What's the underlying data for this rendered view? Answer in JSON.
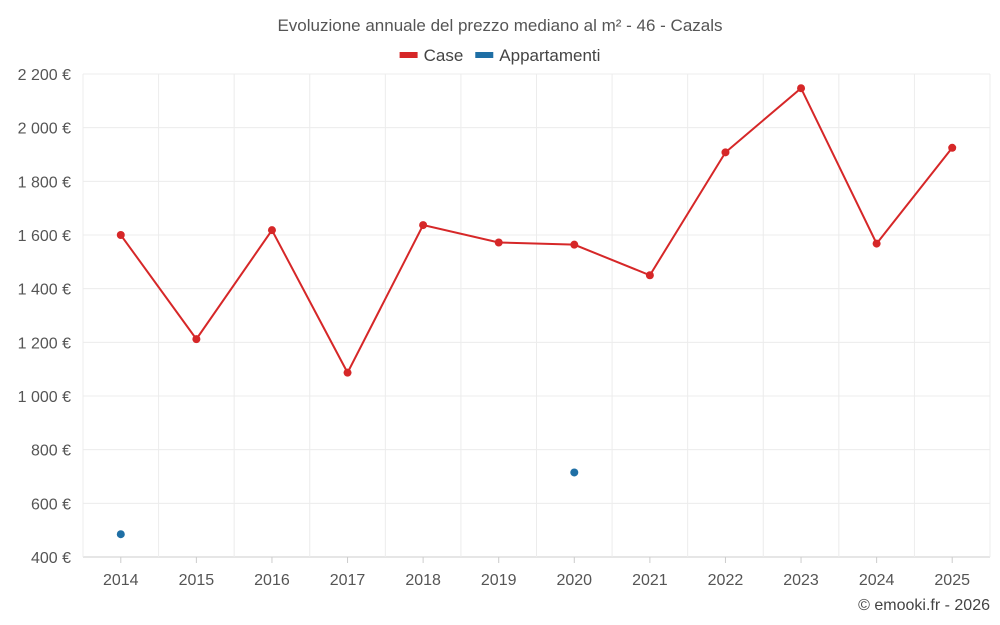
{
  "chart_data": {
    "type": "line",
    "title": "Evoluzione annuale del prezzo mediano al m² - 46 - Cazals",
    "legend_position": "top-center",
    "grid": true,
    "categories": [
      "2014",
      "2015",
      "2016",
      "2017",
      "2018",
      "2019",
      "2020",
      "2021",
      "2022",
      "2023",
      "2024",
      "2025"
    ],
    "ylim": [
      400,
      2200
    ],
    "yticks": [
      400,
      600,
      800,
      1000,
      1200,
      1400,
      1600,
      1800,
      2000,
      2200
    ],
    "ytick_labels": [
      "400 €",
      "600 €",
      "800 €",
      "1 000 €",
      "1 200 €",
      "1 400 €",
      "1 600 €",
      "1 800 €",
      "2 000 €",
      "2 200 €"
    ],
    "series": [
      {
        "name": "Case",
        "color": "#d62728",
        "values": [
          1600,
          1212,
          1618,
          1087,
          1637,
          1572,
          1564,
          1450,
          1908,
          2147,
          1568,
          1925
        ]
      },
      {
        "name": "Appartamenti",
        "color": "#1f6fa5",
        "values": [
          485,
          null,
          null,
          null,
          null,
          null,
          715,
          null,
          null,
          null,
          null,
          null
        ]
      }
    ]
  },
  "credit": "© emooki.fr - 2026"
}
